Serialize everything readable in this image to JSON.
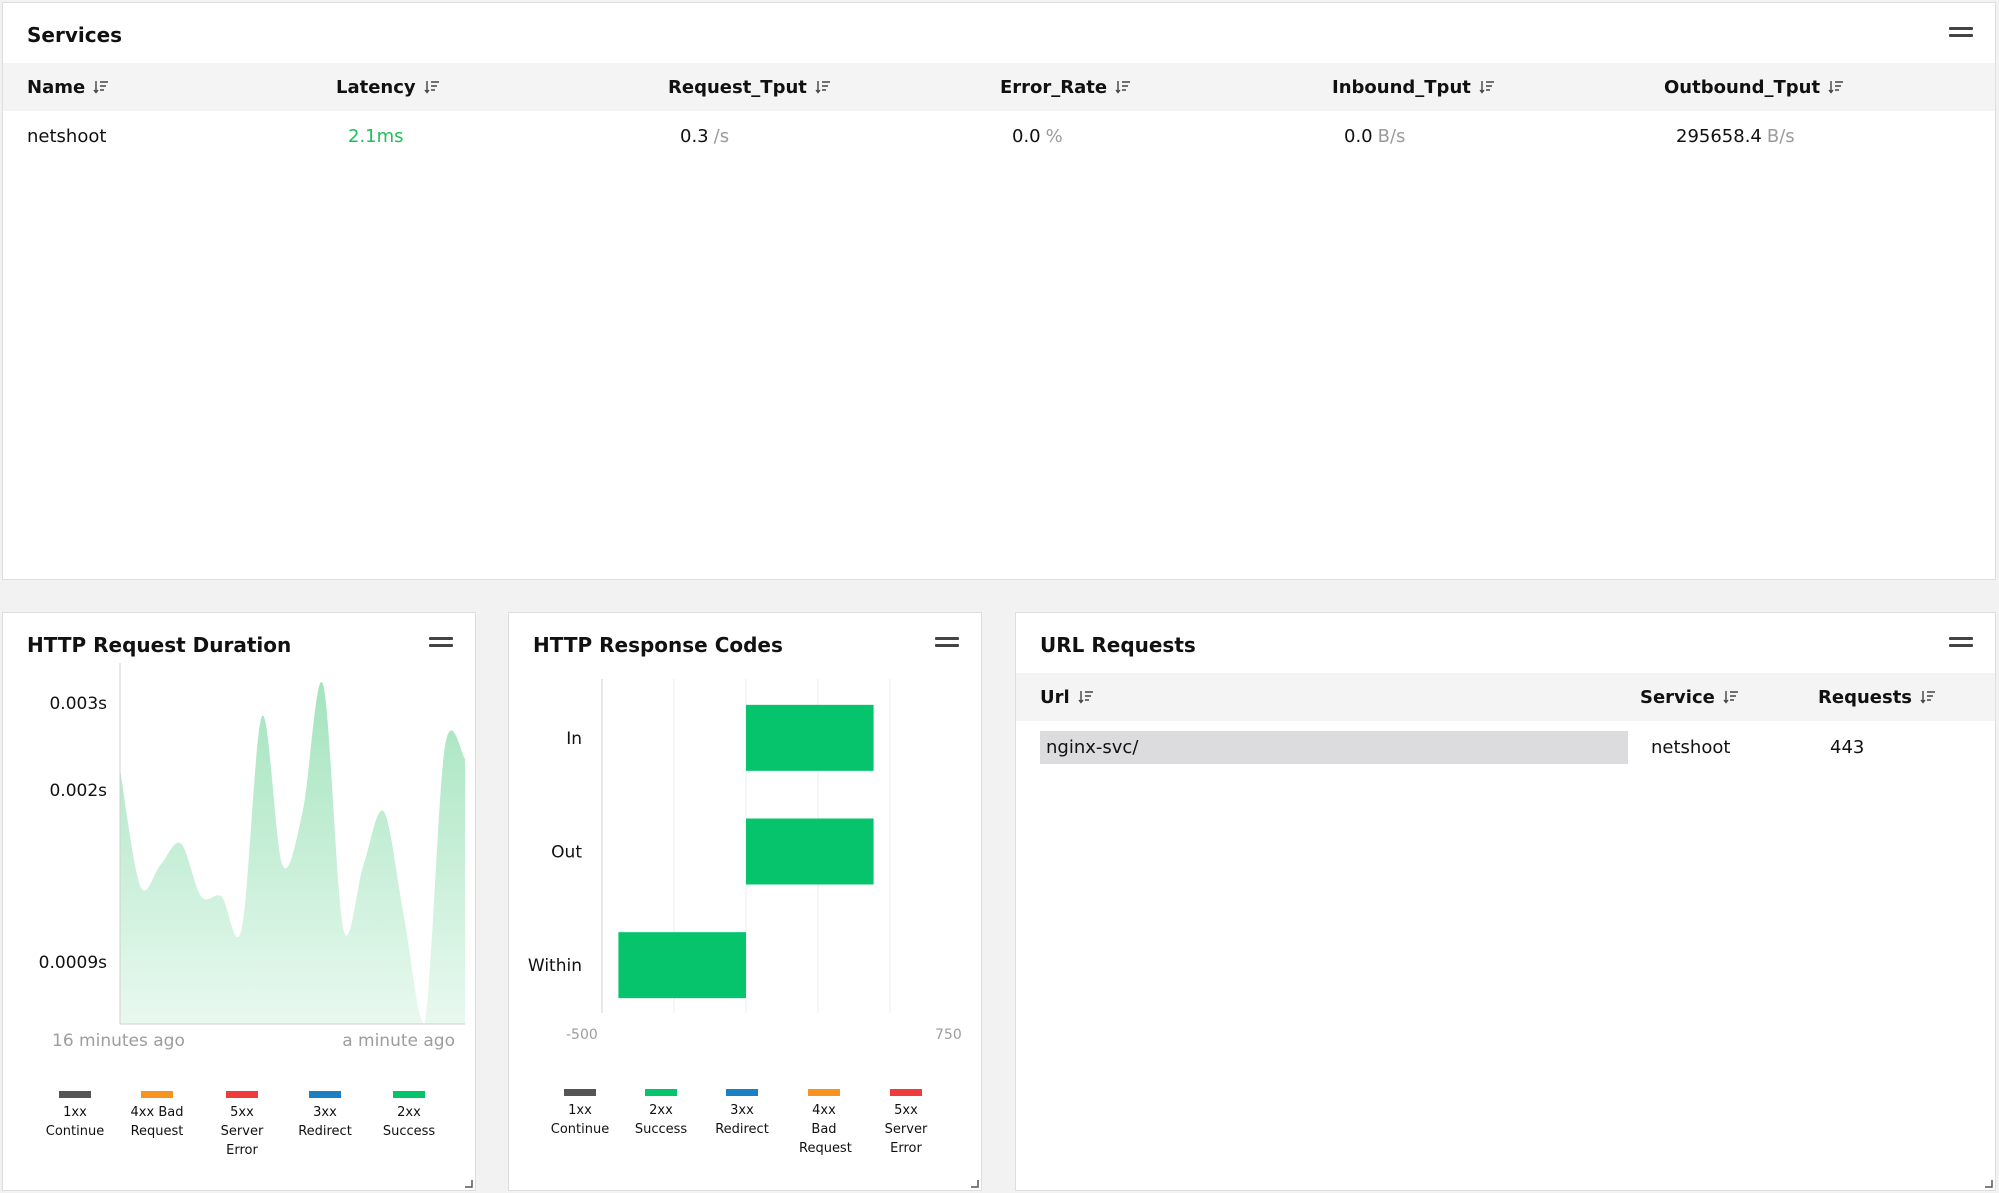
{
  "services": {
    "title": "Services",
    "columns": [
      "Name",
      "Latency",
      "Request_Tput",
      "Error_Rate",
      "Inbound_Tput",
      "Outbound_Tput"
    ],
    "row": {
      "name": "netshoot",
      "latency": "2.1ms",
      "request_tput": "0.3",
      "request_tput_unit": "/s",
      "error_rate": "0.0",
      "error_rate_unit": "%",
      "inbound_tput": "0.0",
      "inbound_tput_unit": "B/s",
      "outbound_tput": "295658.4",
      "outbound_tput_unit": "B/s"
    }
  },
  "duration_panel": {
    "title": "HTTP Request Duration",
    "y_ticks": [
      "0.003s",
      "0.002s",
      "0.0009s"
    ],
    "x_ticks": [
      "16 minutes ago",
      "a minute ago"
    ],
    "legend": [
      {
        "code": "1xx",
        "label": "Continue",
        "color": "#555555"
      },
      {
        "code": "4xx Bad",
        "label": "Request",
        "color": "#f7931e"
      },
      {
        "code": "5xx",
        "label": "Server Error",
        "color": "#ef3b3b"
      },
      {
        "code": "3xx",
        "label": "Redirect",
        "color": "#1b7fc4"
      },
      {
        "code": "2xx",
        "label": "Success",
        "color": "#06c46c"
      }
    ]
  },
  "codes_panel": {
    "title": "HTTP Response Codes",
    "x_ticks": [
      "-500",
      "750"
    ],
    "legend": [
      {
        "code": "1xx",
        "label": "Continue",
        "color": "#555555"
      },
      {
        "code": "2xx",
        "label": "Success",
        "color": "#06c46c"
      },
      {
        "code": "3xx",
        "label": "Redirect",
        "color": "#1b7fc4"
      },
      {
        "code": "4xx",
        "label": "Bad Request",
        "color": "#f7931e"
      },
      {
        "code": "5xx",
        "label": "Server Error",
        "color": "#ef3b3b"
      }
    ]
  },
  "url_panel": {
    "title": "URL Requests",
    "columns": [
      "Url",
      "Service",
      "Requests"
    ],
    "row": {
      "url": "nginx-svc/",
      "service": "netshoot",
      "requests": "443"
    }
  },
  "chart_data": [
    {
      "type": "area",
      "title": "HTTP Request Duration",
      "xlabel": "",
      "ylabel": "",
      "x_range": [
        "16 minutes ago",
        "a minute ago"
      ],
      "y_ticks": [
        "0.0009s",
        "0.002s",
        "0.003s"
      ],
      "series": [
        {
          "name": "2xx",
          "color": "#06c46c",
          "values": [
            0.0024,
            0.0013,
            0.0015,
            0.0017,
            0.0012,
            0.0012,
            0.0009,
            0.0029,
            0.0015,
            0.002,
            0.0032,
            0.0009,
            0.0015,
            0.002,
            0.001,
            0.0,
            0.0026,
            0.0025
          ]
        }
      ]
    },
    {
      "type": "bar",
      "orientation": "horizontal",
      "title": "HTTP Response Codes",
      "categories": [
        "In",
        "Out",
        "Within"
      ],
      "xlim": [
        -500,
        750
      ],
      "series": [
        {
          "name": "2xx",
          "color": "#06c46c",
          "ranges": [
            [
              0,
              443
            ],
            [
              0,
              443
            ],
            [
              -443,
              0
            ]
          ]
        }
      ]
    }
  ]
}
